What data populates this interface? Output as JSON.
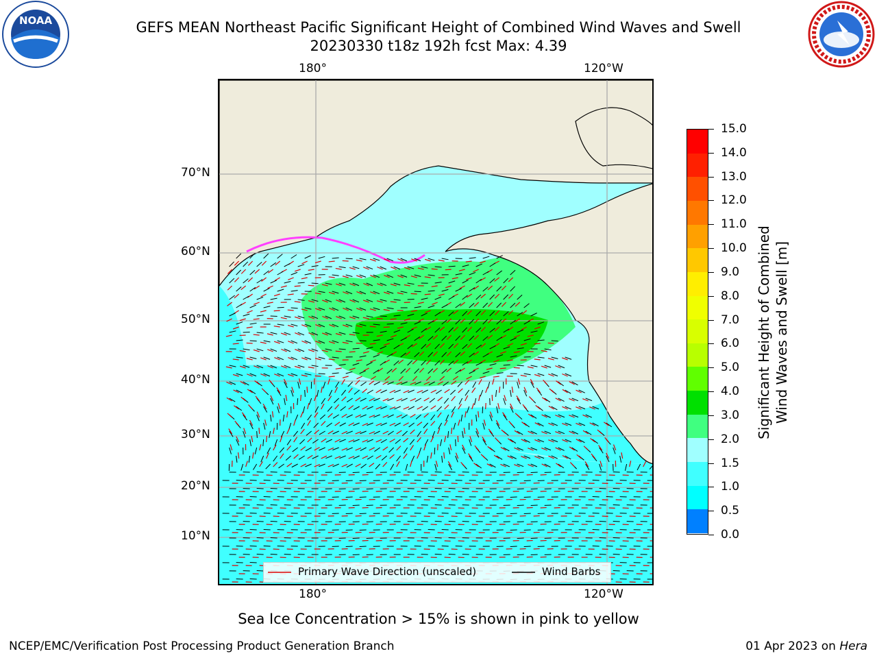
{
  "header": {
    "title_line1": "GEFS MEAN Northeast Pacific Significant Height of Combined Wind Waves and Swell",
    "title_line2": "20230330 t18z 192h fcst   Max: 4.39"
  },
  "logos": {
    "left": {
      "name": "noaa-logo",
      "text": "NOAA"
    },
    "right": {
      "name": "nws-logo",
      "text": "NATIONAL WEATHER SERVICE"
    }
  },
  "map": {
    "top_lon_labels": [
      "180°",
      "120°W"
    ],
    "bottom_lon_labels": [
      "180°",
      "120°W"
    ],
    "lat_labels": [
      "70°N",
      "60°N",
      "50°N",
      "40°N",
      "30°N",
      "20°N",
      "10°N"
    ],
    "legend": {
      "wave_label": "Primary Wave Direction (unscaled)",
      "barb_label": "Wind Barbs",
      "wave_color": "#e00000",
      "barb_color": "#000000"
    },
    "colors": {
      "land": "#efecdc",
      "ocean_light": "#a0ffff",
      "ocean_mid": "#40ffff",
      "ocean_green_light": "#40ff80",
      "ocean_green": "#00e000",
      "ice": "#ff40ff"
    }
  },
  "colorbar": {
    "ticks": [
      "15.0",
      "14.0",
      "13.0",
      "12.0",
      "11.0",
      "10.0",
      "9.0",
      "8.0",
      "7.0",
      "6.0",
      "5.0",
      "4.0",
      "3.0",
      "2.0",
      "1.5",
      "1.0",
      "0.5",
      "0.0"
    ],
    "colors": [
      "#ff0000",
      "#ff2000",
      "#ff5000",
      "#ff7800",
      "#ffa000",
      "#ffc800",
      "#ffee00",
      "#f0ff00",
      "#d8ff00",
      "#b8ff00",
      "#60ff00",
      "#00e000",
      "#40ff80",
      "#a0ffff",
      "#40ffff",
      "#00ffff",
      "#0080ff",
      "#0000ff"
    ],
    "label_line1": "Significant Height of Combined",
    "label_line2": "Wind Waves and Swell [m]"
  },
  "caption": "Sea Ice Concentration > 15% is shown in pink to yellow",
  "footer": {
    "left": "NCEP/EMC/Verification Post Processing Product Generation Branch",
    "date": "01 Apr 2023 on ",
    "machine": "Hera"
  }
}
